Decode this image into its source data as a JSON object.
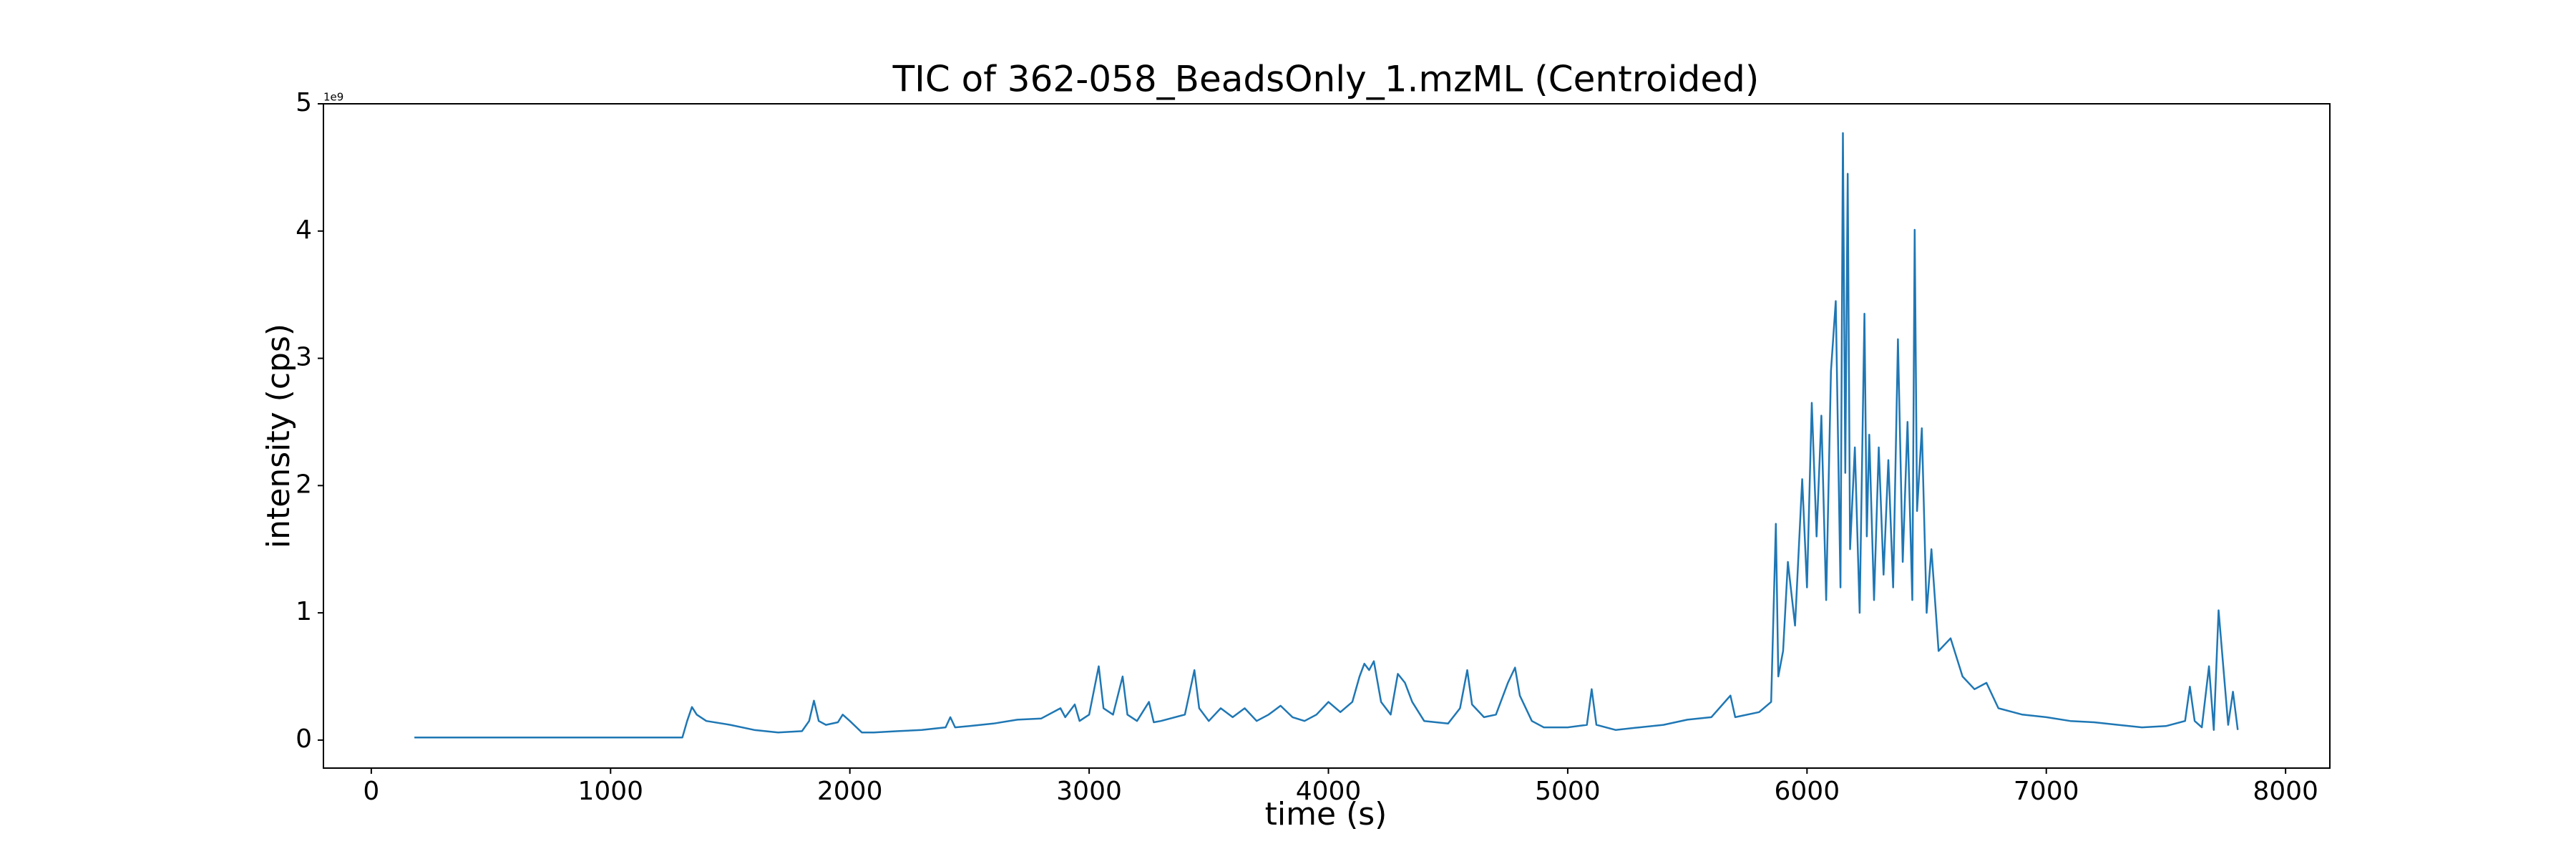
{
  "chart_data": {
    "type": "line",
    "title": "TIC of 362-058_BeadsOnly_1.mzML (Centroided)",
    "x_label": "time (s)",
    "y_label": "intensity (cps)",
    "y_offset_label": "1e9",
    "color": "#1f77b4",
    "xlim": [
      -200,
      8185
    ],
    "ylim": [
      -0.22,
      5
    ],
    "xticks": [
      0,
      1000,
      2000,
      3000,
      4000,
      5000,
      6000,
      7000,
      8000
    ],
    "yticks": [
      0,
      1,
      2,
      3,
      4,
      5
    ],
    "x": [
      180,
      1300,
      1320,
      1340,
      1360,
      1400,
      1500,
      1600,
      1700,
      1800,
      1830,
      1850,
      1870,
      1900,
      1950,
      1970,
      2000,
      2050,
      2100,
      2200,
      2300,
      2400,
      2420,
      2440,
      2500,
      2600,
      2700,
      2800,
      2880,
      2900,
      2940,
      2960,
      3000,
      3040,
      3060,
      3100,
      3140,
      3160,
      3200,
      3250,
      3270,
      3300,
      3400,
      3440,
      3460,
      3500,
      3550,
      3600,
      3650,
      3700,
      3750,
      3800,
      3850,
      3900,
      3950,
      4000,
      4050,
      4100,
      4130,
      4150,
      4170,
      4190,
      4220,
      4260,
      4290,
      4320,
      4350,
      4400,
      4500,
      4550,
      4580,
      4600,
      4650,
      4700,
      4750,
      4780,
      4800,
      4850,
      4900,
      5000,
      5080,
      5100,
      5120,
      5200,
      5300,
      5400,
      5500,
      5600,
      5680,
      5700,
      5800,
      5850,
      5870,
      5880,
      5900,
      5920,
      5950,
      5980,
      6000,
      6020,
      6040,
      6060,
      6080,
      6100,
      6120,
      6140,
      6150,
      6160,
      6170,
      6180,
      6200,
      6220,
      6240,
      6250,
      6260,
      6280,
      6300,
      6320,
      6340,
      6360,
      6380,
      6400,
      6420,
      6440,
      6450,
      6460,
      6480,
      6500,
      6520,
      6550,
      6600,
      6650,
      6700,
      6750,
      6800,
      6900,
      7000,
      7100,
      7200,
      7300,
      7400,
      7500,
      7580,
      7600,
      7620,
      7650,
      7680,
      7700,
      7720,
      7760,
      7780,
      7800
    ],
    "values": [
      0.02,
      0.02,
      0.15,
      0.26,
      0.2,
      0.15,
      0.12,
      0.08,
      0.06,
      0.07,
      0.15,
      0.31,
      0.15,
      0.12,
      0.14,
      0.2,
      0.15,
      0.06,
      0.06,
      0.07,
      0.08,
      0.1,
      0.18,
      0.1,
      0.11,
      0.13,
      0.16,
      0.17,
      0.25,
      0.18,
      0.28,
      0.15,
      0.2,
      0.58,
      0.25,
      0.2,
      0.5,
      0.2,
      0.15,
      0.3,
      0.14,
      0.15,
      0.2,
      0.55,
      0.25,
      0.15,
      0.25,
      0.18,
      0.25,
      0.15,
      0.2,
      0.27,
      0.18,
      0.15,
      0.2,
      0.3,
      0.22,
      0.3,
      0.5,
      0.6,
      0.55,
      0.62,
      0.3,
      0.2,
      0.52,
      0.45,
      0.3,
      0.15,
      0.13,
      0.25,
      0.55,
      0.28,
      0.18,
      0.2,
      0.45,
      0.57,
      0.35,
      0.15,
      0.1,
      0.1,
      0.12,
      0.4,
      0.12,
      0.08,
      0.1,
      0.12,
      0.16,
      0.18,
      0.35,
      0.18,
      0.22,
      0.3,
      1.7,
      0.5,
      0.7,
      1.4,
      0.9,
      2.05,
      1.2,
      2.65,
      1.6,
      2.55,
      1.1,
      2.9,
      3.45,
      1.2,
      4.77,
      2.1,
      4.45,
      1.5,
      2.3,
      1.0,
      3.35,
      1.6,
      2.4,
      1.1,
      2.3,
      1.3,
      2.2,
      1.2,
      3.15,
      1.4,
      2.5,
      1.1,
      4.01,
      1.8,
      2.45,
      1.0,
      1.5,
      0.7,
      0.8,
      0.5,
      0.4,
      0.45,
      0.25,
      0.2,
      0.18,
      0.15,
      0.14,
      0.12,
      0.1,
      0.11,
      0.15,
      0.42,
      0.15,
      0.1,
      0.58,
      0.08,
      1.02,
      0.12,
      0.38,
      0.08
    ]
  }
}
